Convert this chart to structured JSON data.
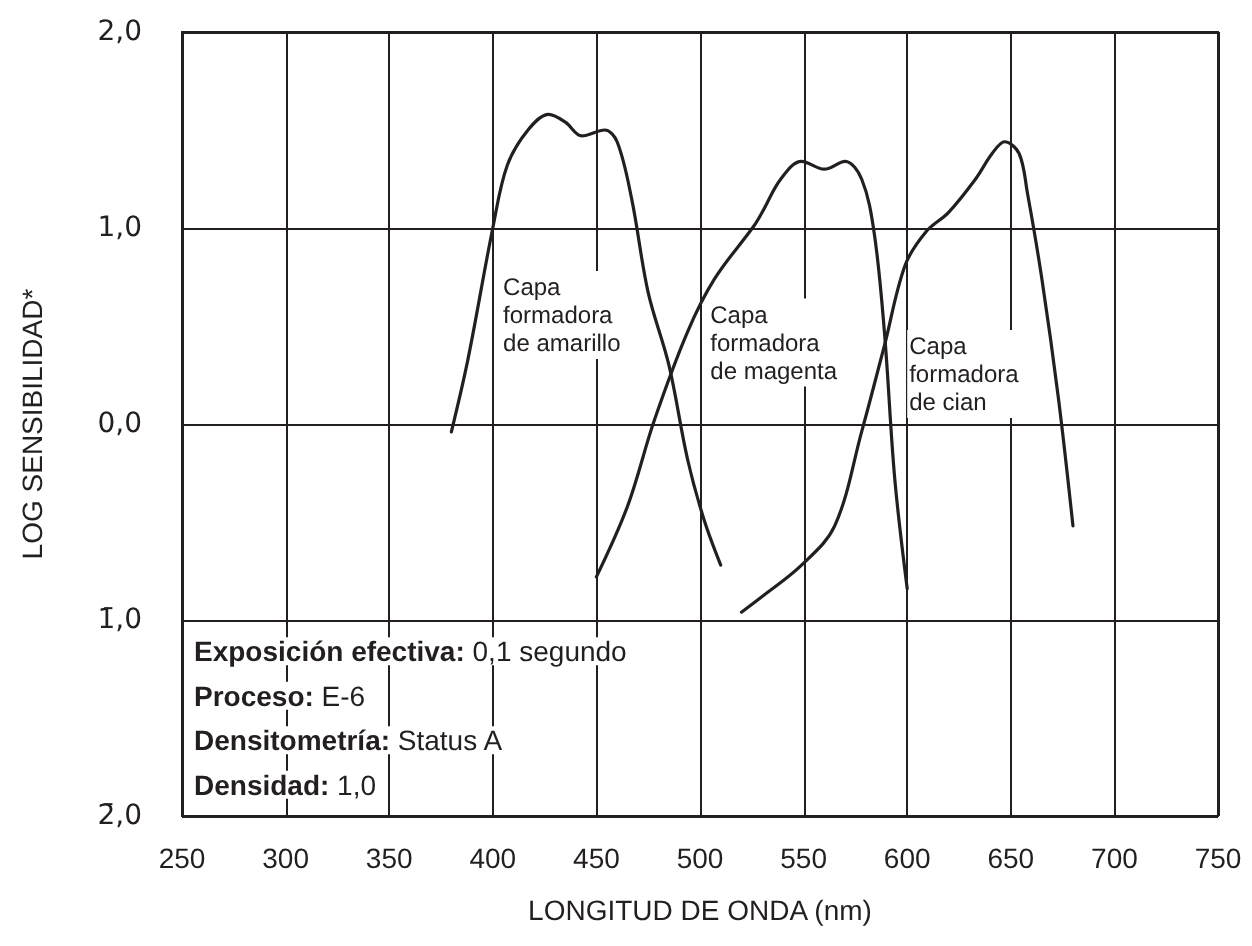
{
  "chart_data": {
    "type": "line",
    "xlabel": "LONGITUD DE ONDA (nm)",
    "ylabel": "LOG SENSIBILIDAD*",
    "xlim": [
      250,
      750
    ],
    "xticks": [
      250,
      300,
      350,
      400,
      450,
      500,
      550,
      600,
      650,
      700,
      750
    ],
    "ylim": [
      -2,
      2
    ],
    "yticks": [
      {
        "value": -2,
        "label": "2̄,0"
      },
      {
        "value": -1,
        "label": "1̄,0"
      },
      {
        "value": 0,
        "label": "0,0"
      },
      {
        "value": 1,
        "label": "1,0"
      },
      {
        "value": 2,
        "label": "2,0"
      }
    ],
    "grid": true,
    "series": [
      {
        "color": "#231f20",
        "x": [
          380,
          388,
          400,
          407,
          417,
          427,
          435,
          443,
          454,
          460,
          467,
          475,
          485,
          494,
          502,
          510
        ],
        "values": [
          -0.04,
          0.33,
          1.0,
          1.32,
          1.5,
          1.58,
          1.54,
          1.47,
          1.5,
          1.44,
          1.15,
          0.67,
          0.3,
          -0.18,
          -0.49,
          -0.72
        ]
      },
      {
        "color": "#231f20",
        "x": [
          450,
          465,
          478,
          494,
          507,
          526,
          530,
          539,
          549,
          560,
          570,
          578,
          584,
          589,
          594,
          600
        ],
        "values": [
          -0.78,
          -0.42,
          0.02,
          0.47,
          0.74,
          1.01,
          1.08,
          1.25,
          1.34,
          1.3,
          1.34,
          1.25,
          0.98,
          0.47,
          -0.28,
          -0.84
        ]
      },
      {
        "color": "#231f20",
        "x": [
          520,
          530,
          549,
          565,
          578,
          589,
          599,
          609,
          620,
          633,
          641,
          647,
          654,
          658,
          665,
          673,
          680
        ],
        "values": [
          -0.96,
          -0.88,
          -0.72,
          -0.52,
          -0.04,
          0.4,
          0.81,
          0.98,
          1.08,
          1.25,
          1.38,
          1.44,
          1.38,
          1.18,
          0.74,
          0.13,
          -0.52
        ]
      }
    ],
    "annotations": [
      "Capa\nformadora\nde amarillo",
      "Capa\nformadora\nde magenta",
      "Capa\nformadora\nde cian",
      "Exposición efectiva: 0,1 segundo",
      "Proceso: E-6",
      "Densitometría: Status A",
      "Densidad: 1,0"
    ]
  }
}
